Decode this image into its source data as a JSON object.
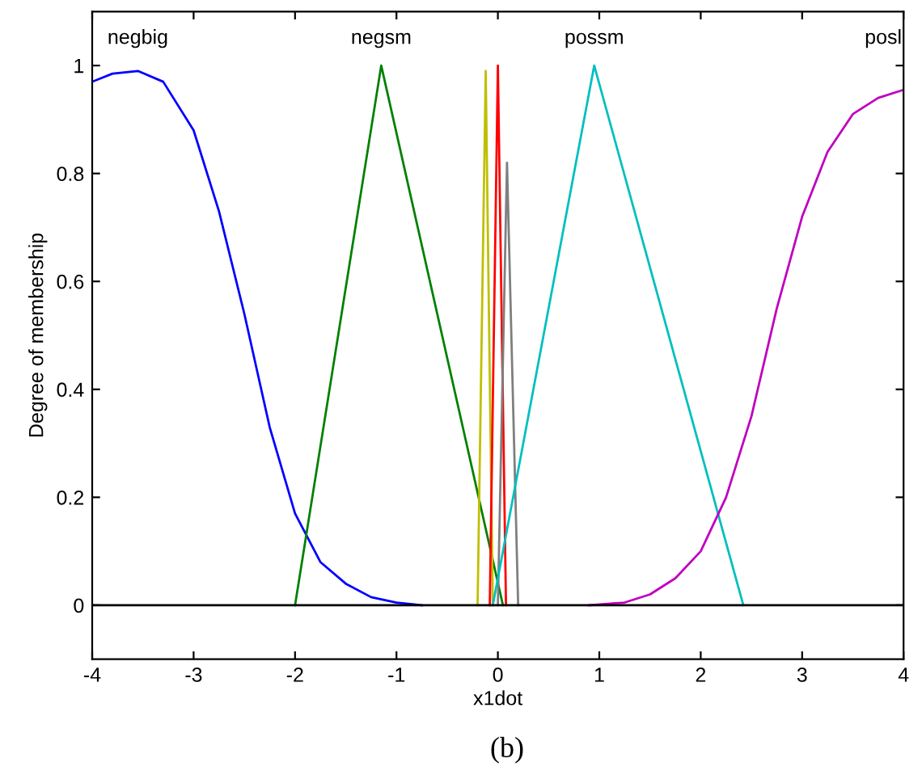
{
  "chart_data": {
    "type": "line",
    "xlabel": "x1dot",
    "ylabel": "Degree of membership",
    "xlim": [
      -4,
      4
    ],
    "ylim": [
      -0.1,
      1.1
    ],
    "xticks": [
      -4,
      -3,
      -2,
      -1,
      0,
      1,
      2,
      3,
      4
    ],
    "yticks": [
      0,
      0.2,
      0.4,
      0.6,
      0.8,
      1
    ],
    "grid": false,
    "legend": false,
    "marker": "none",
    "line_style": "solid",
    "ref_lines": [
      {
        "axis": "y",
        "value": 0,
        "color": "#000000"
      }
    ],
    "annotations": [
      "(b)"
    ],
    "series": [
      {
        "name": "negbig",
        "color": "#0000ff",
        "x": [
          -4,
          -3.8,
          -3.55,
          -3.3,
          -3,
          -2.75,
          -2.5,
          -2.25,
          -2,
          -1.75,
          -1.5,
          -1.25,
          -1,
          -0.75
        ],
        "values": [
          0.97,
          0.985,
          0.99,
          0.97,
          0.88,
          0.73,
          0.54,
          0.33,
          0.17,
          0.08,
          0.04,
          0.015,
          0.005,
          0
        ]
      },
      {
        "name": "negsm",
        "color": "#008000",
        "x": [
          -2,
          -1.15,
          0.05
        ],
        "values": [
          0,
          1,
          0
        ]
      },
      {
        "color": "#bfbf00",
        "x": [
          -0.2,
          -0.12,
          -0.05
        ],
        "values": [
          0,
          0.99,
          0
        ]
      },
      {
        "color": "#ff0000",
        "x": [
          -0.08,
          0,
          0.08
        ],
        "values": [
          0,
          1,
          0
        ]
      },
      {
        "color": "#7f7f7f",
        "x": [
          0,
          0.09,
          0.2
        ],
        "values": [
          0,
          0.82,
          0
        ]
      },
      {
        "name": "possm",
        "color": "#00bfbf",
        "x": [
          -0.05,
          0.95,
          2.42
        ],
        "values": [
          0,
          1,
          0
        ]
      },
      {
        "name": "posl",
        "color": "#bf00bf",
        "x": [
          0.9,
          1.25,
          1.5,
          1.75,
          2,
          2.25,
          2.5,
          2.75,
          3,
          3.25,
          3.5,
          3.75,
          4
        ],
        "values": [
          0,
          0.005,
          0.02,
          0.05,
          0.1,
          0.2,
          0.35,
          0.55,
          0.72,
          0.84,
          0.91,
          0.94,
          0.955
        ]
      }
    ]
  }
}
